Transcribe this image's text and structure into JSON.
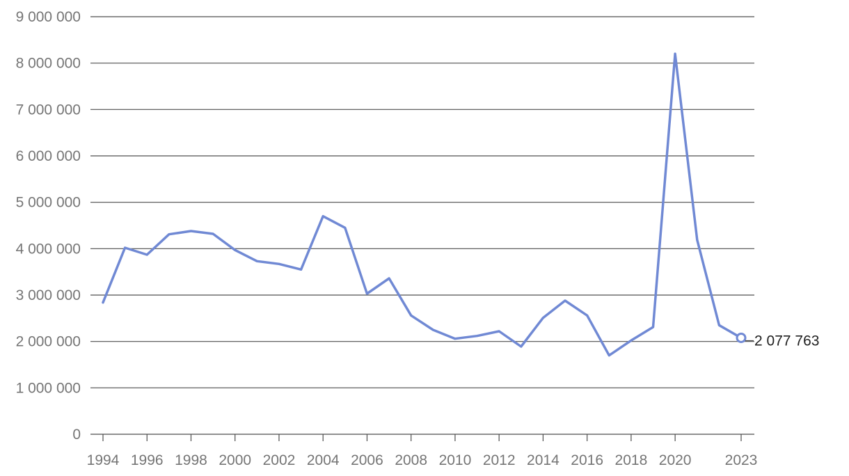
{
  "chart_data": {
    "type": "line",
    "title": "",
    "xlabel": "",
    "ylabel": "",
    "x": [
      1994,
      1995,
      1996,
      1997,
      1998,
      1999,
      2000,
      2001,
      2002,
      2003,
      2004,
      2005,
      2006,
      2007,
      2008,
      2009,
      2010,
      2011,
      2012,
      2013,
      2014,
      2015,
      2016,
      2017,
      2018,
      2019,
      2020,
      2021,
      2022,
      2023
    ],
    "series": [
      {
        "values": [
          2840000,
          4020000,
          3870000,
          4310000,
          4380000,
          4320000,
          3970000,
          3730000,
          3670000,
          3550000,
          4700000,
          4450000,
          3030000,
          3360000,
          2560000,
          2250000,
          2060000,
          2120000,
          2220000,
          1890000,
          2510000,
          2880000,
          2560000,
          1700000,
          2020000,
          2310000,
          8200000,
          4190000,
          2350000,
          2077763
        ],
        "color": "#7089d4"
      }
    ],
    "x_tick_labels": [
      "1994",
      "1996",
      "1998",
      "2000",
      "2002",
      "2004",
      "2006",
      "2008",
      "2010",
      "2012",
      "2014",
      "2016",
      "2018",
      "2020",
      "2023"
    ],
    "y_tick_labels": [
      "0",
      "1 000 000",
      "2 000 000",
      "3 000 000",
      "4 000 000",
      "5 000 000",
      "6 000 000",
      "7 000 000",
      "8 000 000",
      "9 000 000"
    ],
    "ylim": [
      0,
      9000000
    ],
    "xlim": [
      1994,
      2023
    ],
    "grid": true,
    "legend": "none",
    "end_label": "2 077 763"
  }
}
